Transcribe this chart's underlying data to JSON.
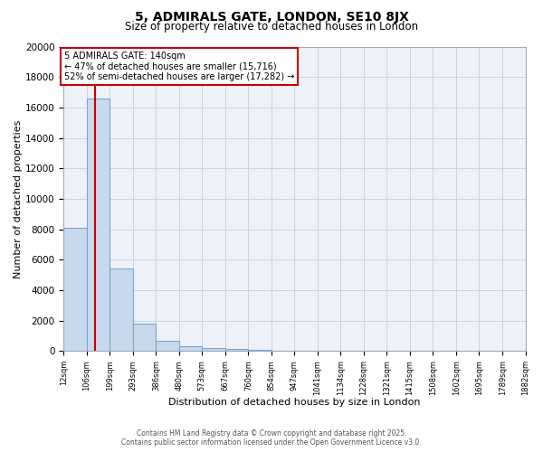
{
  "title": "5, ADMIRALS GATE, LONDON, SE10 8JX",
  "subtitle": "Size of property relative to detached houses in London",
  "xlabel": "Distribution of detached houses by size in London",
  "ylabel": "Number of detached properties",
  "property_size": 140,
  "annotation_line1": "5 ADMIRALS GATE: 140sqm",
  "annotation_line2": "← 47% of detached houses are smaller (15,716)",
  "annotation_line3": "52% of semi-detached houses are larger (17,282) →",
  "footer_line1": "Contains HM Land Registry data © Crown copyright and database right 2025.",
  "footer_line2": "Contains public sector information licensed under the Open Government Licence v3.0.",
  "bins": [
    12,
    106,
    199,
    293,
    386,
    480,
    573,
    667,
    760,
    854,
    947,
    1041,
    1134,
    1228,
    1321,
    1415,
    1508,
    1602,
    1695,
    1789,
    1882
  ],
  "counts": [
    8100,
    16600,
    5400,
    1800,
    700,
    310,
    200,
    145,
    100,
    10,
    0,
    0,
    0,
    0,
    0,
    0,
    0,
    0,
    0,
    0
  ],
  "bar_color": "#c8d8ed",
  "bar_edge_color": "#7aa8cc",
  "red_line_color": "#cc0000",
  "grid_color": "#c8d4e4",
  "annotation_box_color": "#cc0000",
  "ylim": [
    0,
    20000
  ],
  "yticks": [
    0,
    2000,
    4000,
    6000,
    8000,
    10000,
    12000,
    14000,
    16000,
    18000,
    20000
  ],
  "background_color": "#ffffff",
  "plot_bg_color": "#eef2f8"
}
